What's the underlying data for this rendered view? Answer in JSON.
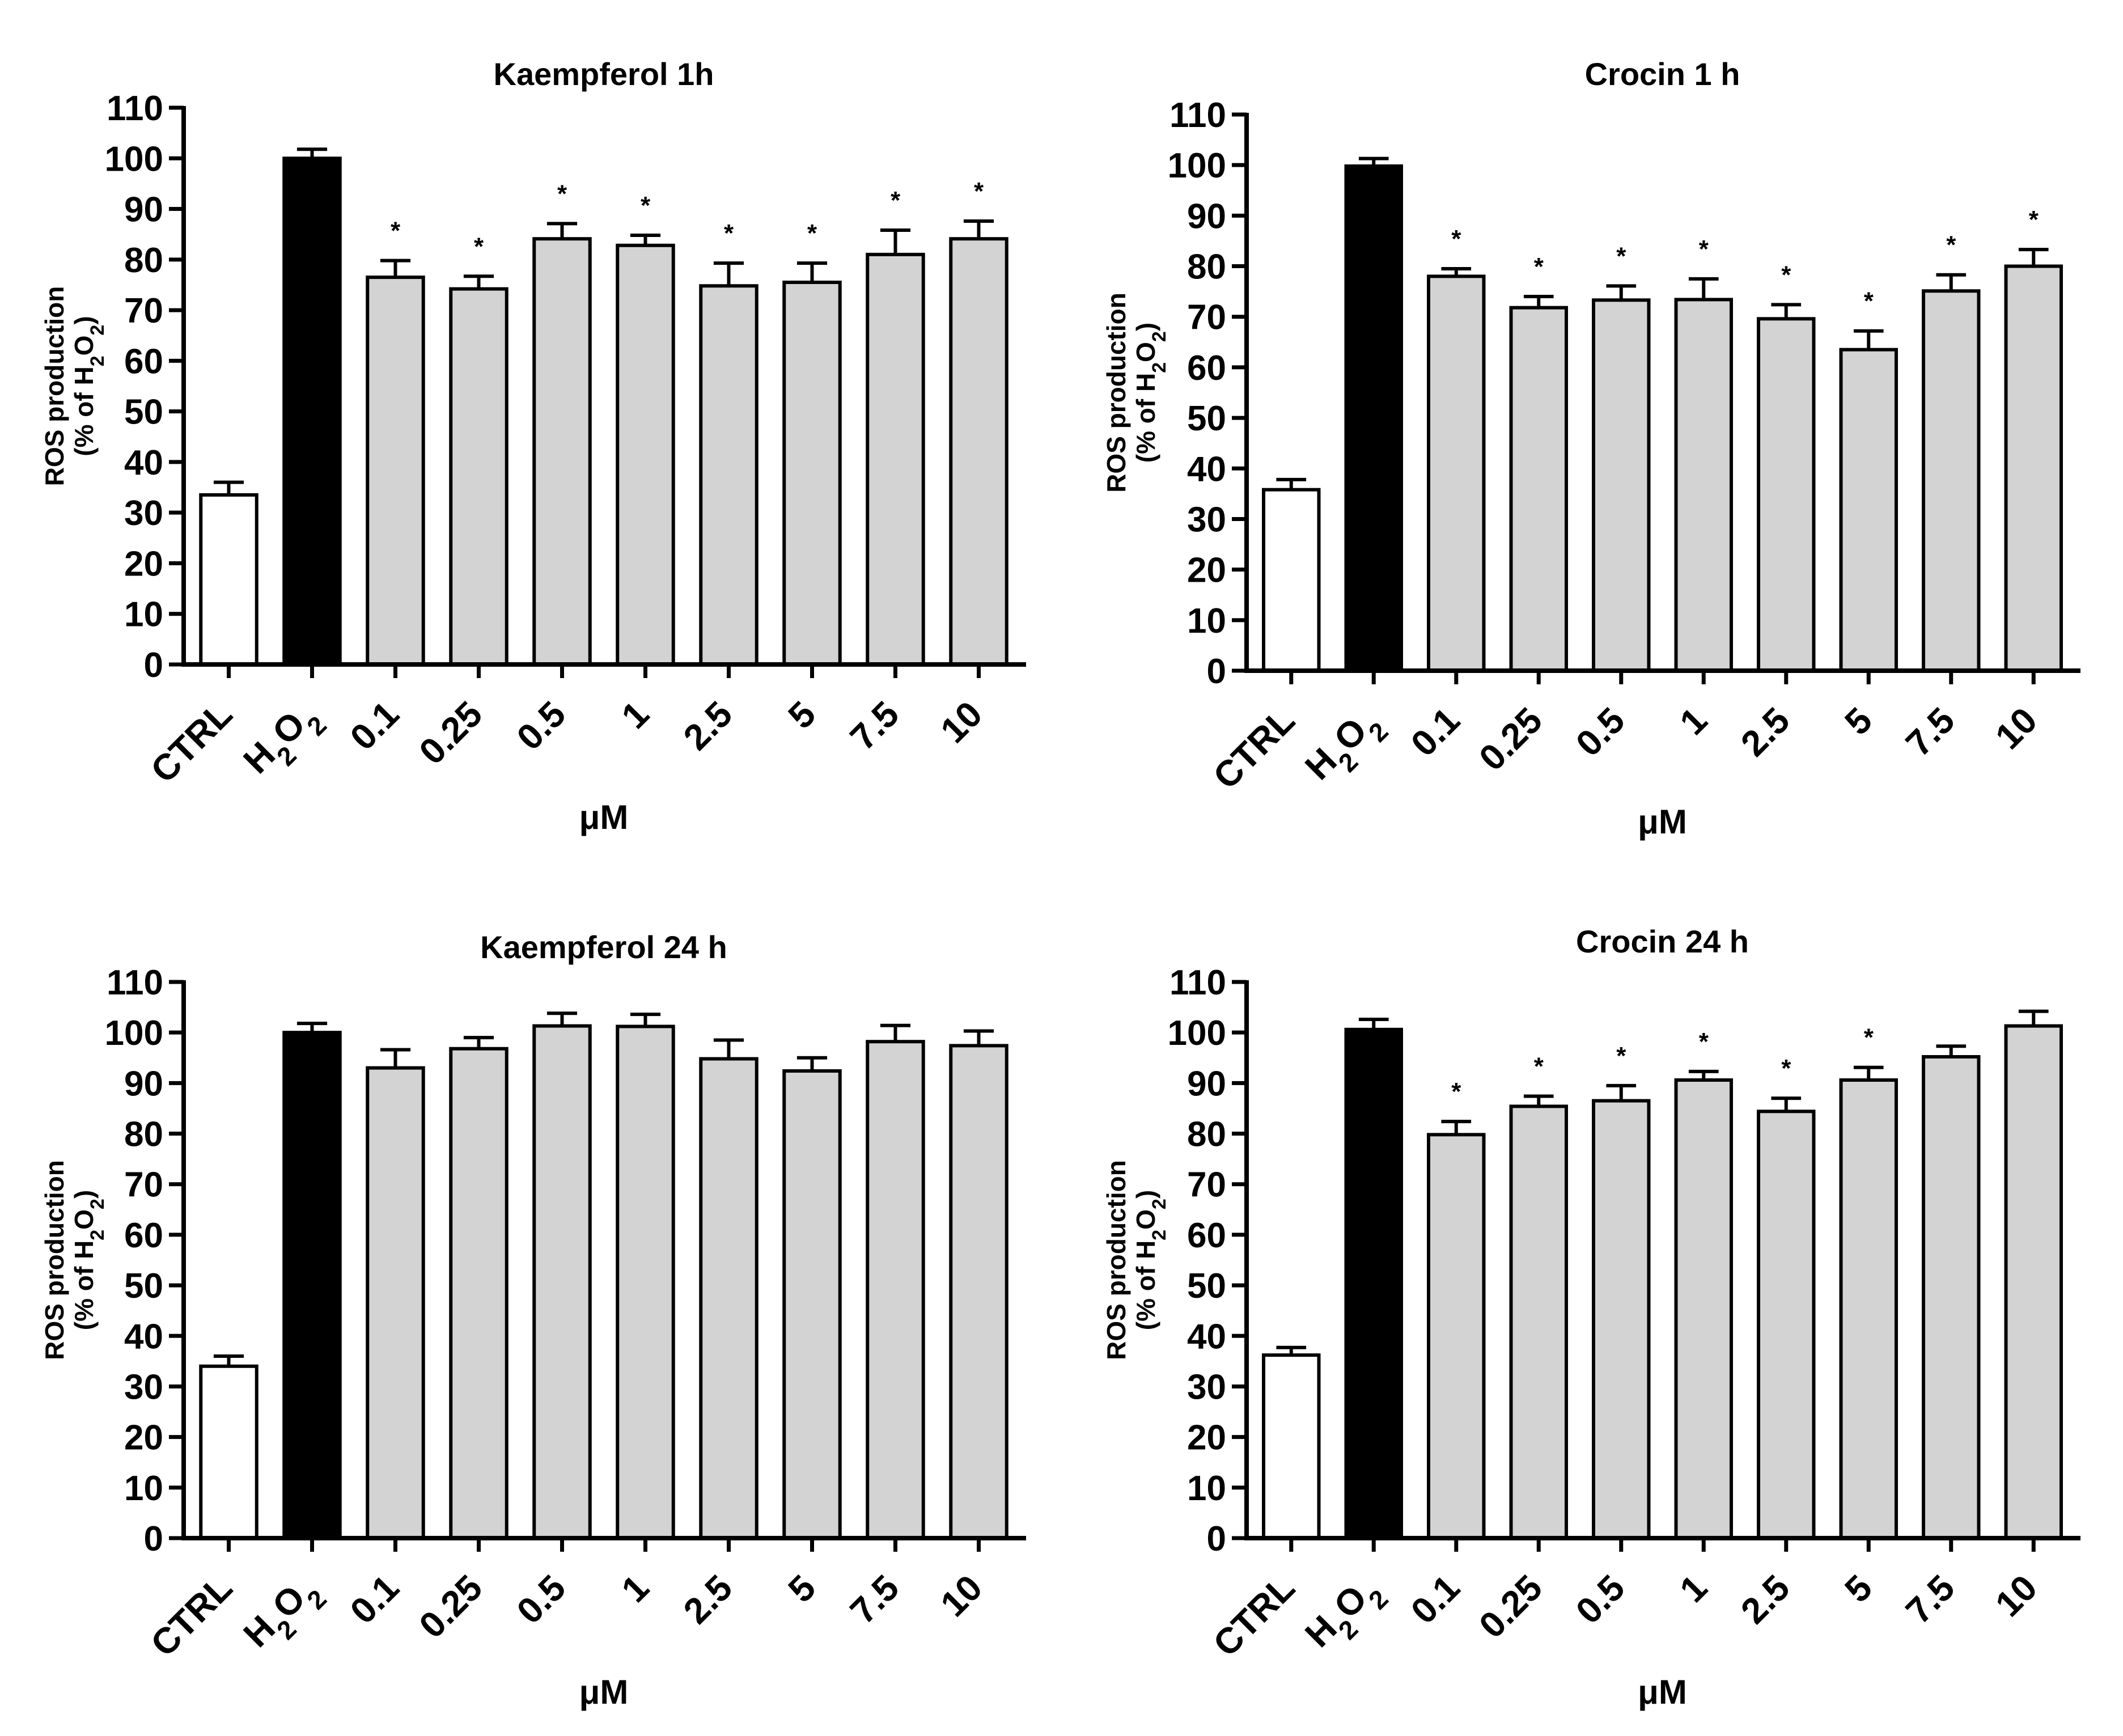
{
  "chart_data": [
    {
      "type": "bar",
      "title": "Kaempferol 1h",
      "xlabel": "μM",
      "ylabel": "ROS production",
      "ylabel2": {
        "pre": "(% of H",
        "sub1": "2",
        "mid": "O",
        "sub2": "2",
        "post": ")"
      },
      "categories": [
        "CTRL",
        "H2O2",
        "0.1",
        "0.25",
        "0.5",
        "1",
        "2.5",
        "5",
        "7.5",
        "10"
      ],
      "values": [
        33.5,
        100,
        76.5,
        74.2,
        84.1,
        82.8,
        74.8,
        75.5,
        81,
        84.1
      ],
      "errors": [
        2.5,
        1.8,
        3.3,
        2.5,
        3,
        2,
        4.5,
        3.8,
        4.8,
        3.5
      ],
      "significant": [
        false,
        false,
        true,
        true,
        true,
        true,
        true,
        true,
        true,
        true
      ],
      "significance_mark": "*",
      "ylim": [
        0,
        110
      ],
      "yticks": [
        "0",
        "10",
        "20",
        "30",
        "40",
        "50",
        "60",
        "70",
        "80",
        "90",
        "100",
        "110"
      ]
    },
    {
      "type": "bar",
      "title": "Crocin 1 h",
      "xlabel": "μM",
      "ylabel": "ROS production",
      "ylabel2": {
        "pre": "(% of H",
        "sub1": "2",
        "mid": "O",
        "sub2": "2",
        "post": ")"
      },
      "categories": [
        "CTRL",
        "H2O2",
        "0.1",
        "0.25",
        "0.5",
        "1",
        "2.5",
        "5",
        "7.5",
        "10"
      ],
      "values": [
        35.8,
        99.8,
        78,
        71.8,
        73.3,
        73.4,
        69.6,
        63.5,
        75.1,
        80
      ],
      "errors": [
        2,
        1.5,
        1.5,
        2.2,
        2.8,
        4.1,
        2.8,
        3.7,
        3.2,
        3.3
      ],
      "significant": [
        false,
        false,
        true,
        true,
        true,
        true,
        true,
        true,
        true,
        true
      ],
      "significance_mark": "*",
      "ylim": [
        0,
        110
      ],
      "yticks": [
        "0",
        "10",
        "20",
        "30",
        "40",
        "50",
        "60",
        "70",
        "80",
        "90",
        "100",
        "110"
      ]
    },
    {
      "type": "bar",
      "title": "Kaempferol 24 h",
      "xlabel": "μM",
      "ylabel": "ROS production",
      "ylabel2": {
        "pre": "(% of H",
        "sub1": "2",
        "mid": "O",
        "sub2": "2",
        "post": ")"
      },
      "categories": [
        "CTRL",
        "H2O2",
        "0.1",
        "0.25",
        "0.5",
        "1",
        "2.5",
        "5",
        "7.5",
        "10"
      ],
      "values": [
        34,
        100,
        93,
        96.8,
        101.3,
        101.2,
        94.8,
        92.4,
        98.2,
        97.4
      ],
      "errors": [
        2,
        1.8,
        3.6,
        2.2,
        2.5,
        2.4,
        3.7,
        2.6,
        3.2,
        2.9
      ],
      "significant": [
        false,
        false,
        false,
        false,
        false,
        false,
        false,
        false,
        false,
        false
      ],
      "significance_mark": "*",
      "ylim": [
        0,
        110
      ],
      "yticks": [
        "0",
        "10",
        "20",
        "30",
        "40",
        "50",
        "60",
        "70",
        "80",
        "90",
        "100",
        "110"
      ]
    },
    {
      "type": "bar",
      "title": "Crocin 24 h",
      "xlabel": "μM",
      "ylabel": "ROS production",
      "ylabel2": {
        "pre": "(% of H",
        "sub1": "2",
        "mid": "O",
        "sub2": "2",
        "post": ")"
      },
      "categories": [
        "CTRL",
        "H2O2",
        "0.1",
        "0.25",
        "0.5",
        "1",
        "2.5",
        "5",
        "7.5",
        "10"
      ],
      "values": [
        36.2,
        100.6,
        79.8,
        85.4,
        86.5,
        90.6,
        84.4,
        90.6,
        95.2,
        101.3
      ],
      "errors": [
        1.5,
        2,
        2.6,
        2,
        3,
        1.7,
        2.6,
        2.5,
        2.1,
        2.9
      ],
      "significant": [
        false,
        false,
        true,
        true,
        true,
        true,
        true,
        true,
        false,
        false
      ],
      "significance_mark": "*",
      "ylim": [
        0,
        110
      ],
      "yticks": [
        "0",
        "10",
        "20",
        "30",
        "40",
        "50",
        "60",
        "70",
        "80",
        "90",
        "100",
        "110"
      ]
    }
  ]
}
